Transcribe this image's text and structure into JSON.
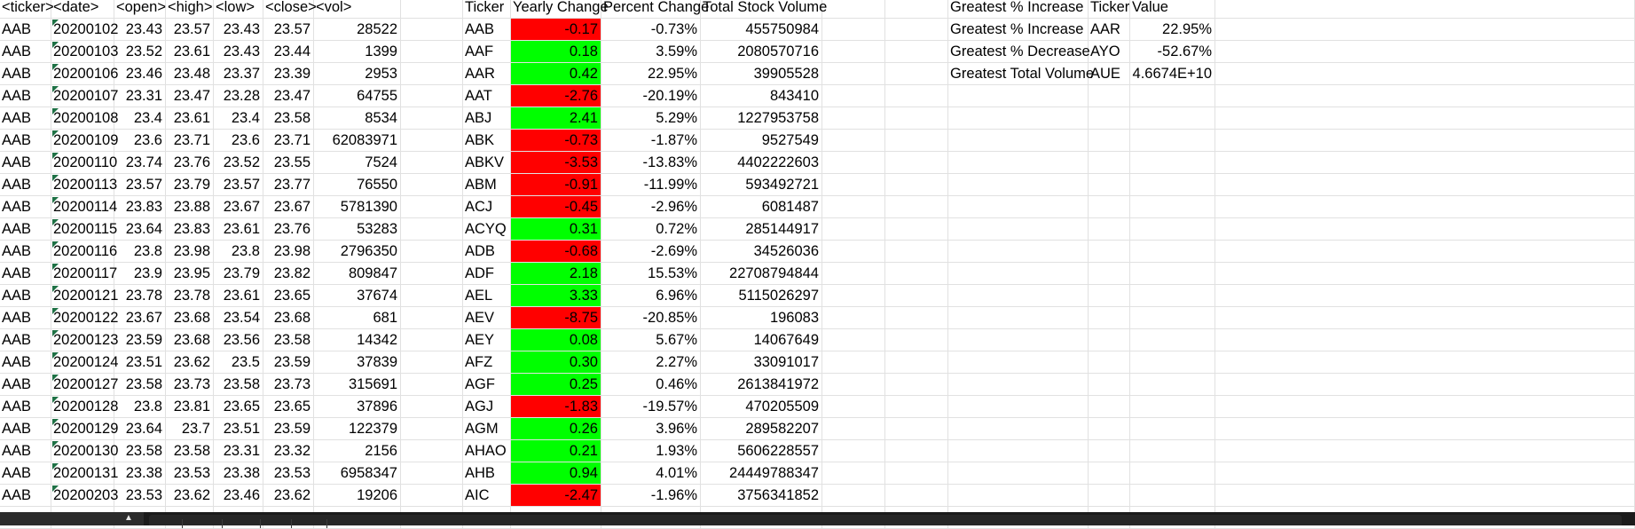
{
  "colors": {
    "positive": "#00ff00",
    "negative": "#ff0000",
    "gridline": "#e1e1e1",
    "bottom_bar": "#1b1b1b"
  },
  "headers": [
    "<ticker>",
    "<date>",
    "<open>",
    "<high>",
    "<low>",
    "<close>",
    "<vol>"
  ],
  "summary_headers": [
    "Ticker",
    "Yearly Change",
    "Percent Change",
    "Total Stock Volume"
  ],
  "greatest_headers": [
    "Greatest % Increase",
    "Ticker",
    "Value"
  ],
  "rows": [
    {
      "ticker": "AAB",
      "date": "20200102",
      "open": "23.43",
      "high": "23.57",
      "low": "23.43",
      "close": "23.57",
      "vol": "28522"
    },
    {
      "ticker": "AAB",
      "date": "20200103",
      "open": "23.52",
      "high": "23.61",
      "low": "23.43",
      "close": "23.44",
      "vol": "1399"
    },
    {
      "ticker": "AAB",
      "date": "20200106",
      "open": "23.46",
      "high": "23.48",
      "low": "23.37",
      "close": "23.39",
      "vol": "2953"
    },
    {
      "ticker": "AAB",
      "date": "20200107",
      "open": "23.31",
      "high": "23.47",
      "low": "23.28",
      "close": "23.47",
      "vol": "64755"
    },
    {
      "ticker": "AAB",
      "date": "20200108",
      "open": "23.4",
      "high": "23.61",
      "low": "23.4",
      "close": "23.58",
      "vol": "8534"
    },
    {
      "ticker": "AAB",
      "date": "20200109",
      "open": "23.6",
      "high": "23.71",
      "low": "23.6",
      "close": "23.71",
      "vol": "62083971"
    },
    {
      "ticker": "AAB",
      "date": "20200110",
      "open": "23.74",
      "high": "23.76",
      "low": "23.52",
      "close": "23.55",
      "vol": "7524"
    },
    {
      "ticker": "AAB",
      "date": "20200113",
      "open": "23.57",
      "high": "23.79",
      "low": "23.57",
      "close": "23.77",
      "vol": "76550"
    },
    {
      "ticker": "AAB",
      "date": "20200114",
      "open": "23.83",
      "high": "23.88",
      "low": "23.67",
      "close": "23.67",
      "vol": "5781390"
    },
    {
      "ticker": "AAB",
      "date": "20200115",
      "open": "23.64",
      "high": "23.83",
      "low": "23.61",
      "close": "23.76",
      "vol": "53283"
    },
    {
      "ticker": "AAB",
      "date": "20200116",
      "open": "23.8",
      "high": "23.98",
      "low": "23.8",
      "close": "23.98",
      "vol": "2796350"
    },
    {
      "ticker": "AAB",
      "date": "20200117",
      "open": "23.9",
      "high": "23.95",
      "low": "23.79",
      "close": "23.82",
      "vol": "809847"
    },
    {
      "ticker": "AAB",
      "date": "20200121",
      "open": "23.78",
      "high": "23.78",
      "low": "23.61",
      "close": "23.65",
      "vol": "37674"
    },
    {
      "ticker": "AAB",
      "date": "20200122",
      "open": "23.67",
      "high": "23.68",
      "low": "23.54",
      "close": "23.68",
      "vol": "681"
    },
    {
      "ticker": "AAB",
      "date": "20200123",
      "open": "23.59",
      "high": "23.68",
      "low": "23.56",
      "close": "23.58",
      "vol": "14342"
    },
    {
      "ticker": "AAB",
      "date": "20200124",
      "open": "23.51",
      "high": "23.62",
      "low": "23.5",
      "close": "23.59",
      "vol": "37839"
    },
    {
      "ticker": "AAB",
      "date": "20200127",
      "open": "23.58",
      "high": "23.73",
      "low": "23.58",
      "close": "23.73",
      "vol": "315691"
    },
    {
      "ticker": "AAB",
      "date": "20200128",
      "open": "23.8",
      "high": "23.81",
      "low": "23.65",
      "close": "23.65",
      "vol": "37896"
    },
    {
      "ticker": "AAB",
      "date": "20200129",
      "open": "23.64",
      "high": "23.7",
      "low": "23.51",
      "close": "23.59",
      "vol": "122379"
    },
    {
      "ticker": "AAB",
      "date": "20200130",
      "open": "23.58",
      "high": "23.58",
      "low": "23.31",
      "close": "23.32",
      "vol": "2156"
    },
    {
      "ticker": "AAB",
      "date": "20200131",
      "open": "23.38",
      "high": "23.53",
      "low": "23.38",
      "close": "23.53",
      "vol": "6958347"
    },
    {
      "ticker": "AAB",
      "date": "20200203",
      "open": "23.53",
      "high": "23.62",
      "low": "23.46",
      "close": "23.62",
      "vol": "19206"
    }
  ],
  "summary": [
    {
      "ticker": "AAB",
      "change": "-0.17",
      "pct": "-0.73%",
      "volume": "455750984"
    },
    {
      "ticker": "AAF",
      "change": "0.18",
      "pct": "3.59%",
      "volume": "2080570716"
    },
    {
      "ticker": "AAR",
      "change": "0.42",
      "pct": "22.95%",
      "volume": "39905528"
    },
    {
      "ticker": "AAT",
      "change": "-2.76",
      "pct": "-20.19%",
      "volume": "843410"
    },
    {
      "ticker": "ABJ",
      "change": "2.41",
      "pct": "5.29%",
      "volume": "1227953758"
    },
    {
      "ticker": "ABK",
      "change": "-0.73",
      "pct": "-1.87%",
      "volume": "9527549"
    },
    {
      "ticker": "ABKV",
      "change": "-3.53",
      "pct": "-13.83%",
      "volume": "4402222603"
    },
    {
      "ticker": "ABM",
      "change": "-0.91",
      "pct": "-11.99%",
      "volume": "593492721"
    },
    {
      "ticker": "ACJ",
      "change": "-0.45",
      "pct": "-2.96%",
      "volume": "6081487"
    },
    {
      "ticker": "ACYQ",
      "change": "0.31",
      "pct": "0.72%",
      "volume": "285144917"
    },
    {
      "ticker": "ADB",
      "change": "-0.68",
      "pct": "-2.69%",
      "volume": "34526036"
    },
    {
      "ticker": "ADF",
      "change": "2.18",
      "pct": "15.53%",
      "volume": "22708794844"
    },
    {
      "ticker": "AEL",
      "change": "3.33",
      "pct": "6.96%",
      "volume": "5115026297"
    },
    {
      "ticker": "AEV",
      "change": "-8.75",
      "pct": "-20.85%",
      "volume": "196083"
    },
    {
      "ticker": "AEY",
      "change": "0.08",
      "pct": "5.67%",
      "volume": "14067649"
    },
    {
      "ticker": "AFZ",
      "change": "0.30",
      "pct": "2.27%",
      "volume": "33091017"
    },
    {
      "ticker": "AGF",
      "change": "0.25",
      "pct": "0.46%",
      "volume": "2613841972"
    },
    {
      "ticker": "AGJ",
      "change": "-1.83",
      "pct": "-19.57%",
      "volume": "470205509"
    },
    {
      "ticker": "AGM",
      "change": "0.26",
      "pct": "3.96%",
      "volume": "289582207"
    },
    {
      "ticker": "AHAO",
      "change": "0.21",
      "pct": "1.93%",
      "volume": "5606228557"
    },
    {
      "ticker": "AHB",
      "change": "0.94",
      "pct": "4.01%",
      "volume": "24449788347"
    },
    {
      "ticker": "AIC",
      "change": "-2.47",
      "pct": "-1.96%",
      "volume": "3756341852"
    }
  ],
  "greatest": [
    {
      "label": "Greatest % Increase",
      "ticker": "AAR",
      "value": "22.95%"
    },
    {
      "label": "Greatest % Decrease",
      "ticker": "AYO",
      "value": "-52.67%"
    },
    {
      "label": "Greatest Total Volume",
      "ticker": "AUE",
      "value": "4.6674E+10"
    }
  ]
}
